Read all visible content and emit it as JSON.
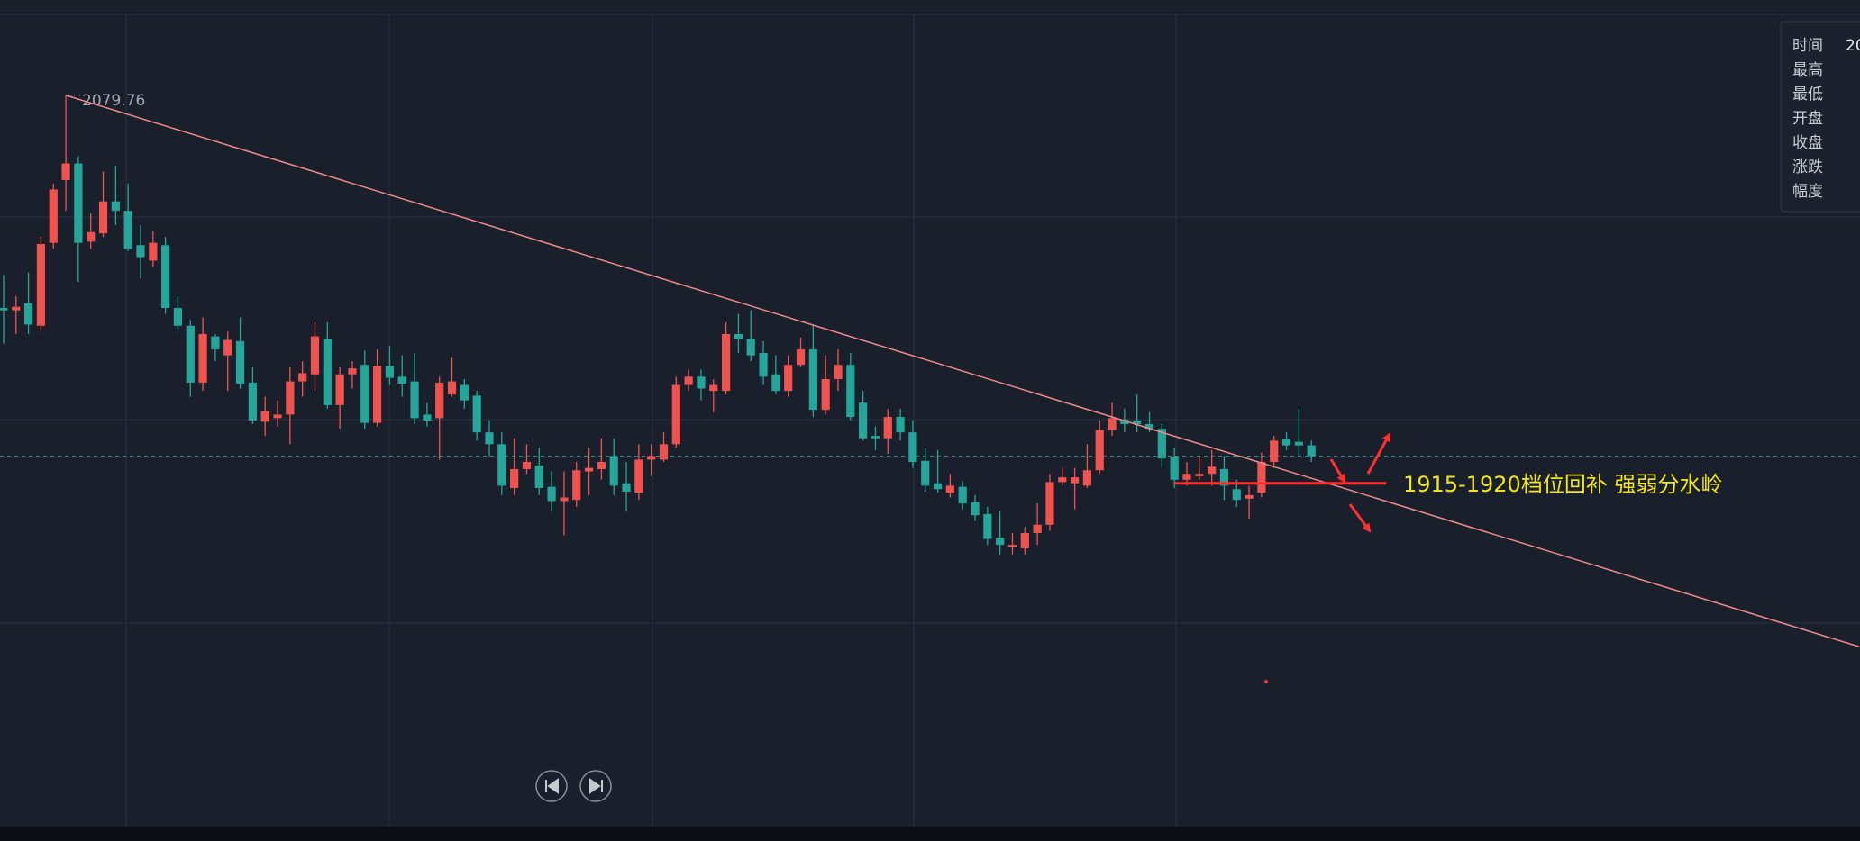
{
  "chart_data": {
    "type": "candlestick",
    "up_color": "#ef5350",
    "down_color": "#26a69a",
    "ylim": [
      1765,
      2120
    ],
    "open": [
      1990,
      1989,
      1992,
      1982.5,
      2017.5,
      2044,
      2051,
      2018,
      2021.5,
      2035,
      2031,
      2016.5,
      2010,
      2016.5,
      1990,
      1982.5,
      1958.5,
      1978,
      1970,
      1976,
      1958.5,
      1942,
      1943.5,
      1945,
      1959,
      1962,
      1977,
      1949,
      1962,
      1966,
      1941.5,
      1965.5,
      1961,
      1959,
      1945,
      1943.5,
      1953.5,
      1957.5,
      1953,
      1937.5,
      1932.5,
      1914,
      1922,
      1923.5,
      1914.5,
      1908.5,
      1909,
      1921,
      1922,
      1927.5,
      1916,
      1912,
      1926,
      1926,
      1932.5,
      1957.5,
      1961,
      1955,
      1955,
      1979,
      1977,
      1971,
      1962,
      1955,
      1966,
      1972.5,
      1947,
      1960,
      1966,
      1950,
      1936,
      1935,
      1944,
      1937.5,
      1925.5,
      1916,
      1912,
      1914.5,
      1908,
      1903,
      1893,
      1889,
      1888.5,
      1895,
      1898.5,
      1916.5,
      1916,
      1915,
      1921.5,
      1938.5,
      1943,
      1942.5,
      1941,
      1939,
      1927,
      1917.5,
      1919,
      1920,
      1922,
      1913.5,
      1909.5,
      1912,
      1925,
      1934.5,
      1933.5,
      1932
    ],
    "high": [
      2004,
      1995,
      2005,
      2020,
      2042.5,
      2079.76,
      2054,
      2030,
      2047.5,
      2050,
      2042.5,
      2025,
      2022.5,
      2020,
      1995,
      1985,
      1986,
      1979,
      1980,
      1986,
      1965,
      1952.5,
      1951,
      1965,
      1967.5,
      1984,
      1984,
      1965,
      1967.5,
      1972,
      1972.5,
      1974,
      1970,
      1971,
      1950,
      1961,
      1969,
      1960,
      1955,
      1942.5,
      1937.5,
      1935,
      1932.5,
      1931,
      1921,
      1921,
      1925,
      1931,
      1935,
      1935,
      1925,
      1932.5,
      1932.5,
      1937.5,
      1961,
      1964,
      1964,
      1960,
      1984,
      1987.5,
      1989,
      1976,
      1970,
      1970,
      1977.5,
      1982.5,
      1970,
      1972.5,
      1971,
      1955,
      1940,
      1947.5,
      1947.5,
      1942.5,
      1931,
      1930,
      1920,
      1917,
      1911,
      1906,
      1904,
      1895,
      1897.5,
      1907.5,
      1920,
      1922.5,
      1922.5,
      1932.5,
      1942.5,
      1950,
      1947.5,
      1953.5,
      1946,
      1941,
      1931,
      1925,
      1927.5,
      1930,
      1927.5,
      1917.5,
      1915,
      1929,
      1936,
      1937.5,
      1947.5,
      1934
    ],
    "low": [
      1975,
      1979,
      1979,
      1980,
      2015,
      2031,
      2001,
      2015,
      2020,
      2025,
      2014,
      2002.5,
      2007.5,
      1987.5,
      1980,
      1952.5,
      1955,
      1967.5,
      1955,
      1956,
      1941,
      1936,
      1940,
      1932.5,
      1952.5,
      1955,
      1947.5,
      1939,
      1956,
      1939,
      1940,
      1957.5,
      1952.5,
      1941,
      1940,
      1926,
      1952.5,
      1947.5,
      1934,
      1927.5,
      1911,
      1911,
      1920,
      1911,
      1904,
      1894,
      1906,
      1911,
      1917.5,
      1911,
      1904,
      1909,
      1919,
      1925,
      1931,
      1955,
      1951,
      1946,
      1953.5,
      1971,
      1967.5,
      1957.5,
      1953.5,
      1952.5,
      1965,
      1944,
      1945,
      1955,
      1942.5,
      1934,
      1930,
      1928.5,
      1934,
      1922.5,
      1912.5,
      1912,
      1910,
      1905,
      1900,
      1890,
      1886,
      1886,
      1886,
      1890,
      1896,
      1915,
      1905,
      1914,
      1920,
      1936,
      1937.5,
      1937.5,
      1937.5,
      1922.5,
      1914,
      1915,
      1917.5,
      1915,
      1909,
      1906,
      1901,
      1910,
      1922.5,
      1930,
      1927.5,
      1925
    ],
    "close": [
      1989,
      1990.5,
      1983,
      2017,
      2040,
      2051,
      2017.5,
      2022,
      2035,
      2031,
      2015,
      2011.5,
      2017.5,
      1990,
      1982.5,
      1958.5,
      1979,
      1972.5,
      1976.5,
      1958,
      1942.5,
      1946.5,
      1945,
      1959,
      1962.5,
      1978,
      1949,
      1962,
      1964.5,
      1941.5,
      1965.5,
      1960.5,
      1958,
      1943.5,
      1942.5,
      1958.5,
      1959,
      1951,
      1937.5,
      1932.5,
      1915,
      1922,
      1925,
      1914,
      1908.5,
      1910,
      1921.5,
      1922.5,
      1925,
      1915,
      1912.5,
      1926,
      1927.5,
      1932.5,
      1957.5,
      1961,
      1956,
      1957.5,
      1979,
      1977,
      1970,
      1961,
      1955,
      1966,
      1972.5,
      1947,
      1960,
      1966,
      1944,
      1935,
      1935,
      1944,
      1937.5,
      1925,
      1915,
      1913.5,
      1915,
      1907.5,
      1902.5,
      1892.5,
      1890,
      1890,
      1895,
      1898.5,
      1916.5,
      1918.5,
      1918.5,
      1921.5,
      1938.5,
      1943.5,
      1941,
      1941,
      1939,
      1926.5,
      1917.5,
      1920,
      1920,
      1923,
      1915,
      1909,
      1911,
      1925,
      1934,
      1932,
      1932,
      1927.5
    ],
    "trendline": {
      "x": [
        5,
        149
      ],
      "y": [
        2079.76,
        1847
      ],
      "color": "#f08a8a"
    },
    "level": {
      "x": [
        94,
        111
      ],
      "y": 1916,
      "color": "#ff2e2e"
    },
    "annotation": "1915-1920档位回补 强弱分水岭",
    "annotation_color": "#f2e51c"
  },
  "info_panel": {
    "labels": [
      "时间",
      "最高",
      "最低",
      "开盘",
      "收盘",
      "涨跌",
      "幅度"
    ],
    "time_value": "20"
  }
}
